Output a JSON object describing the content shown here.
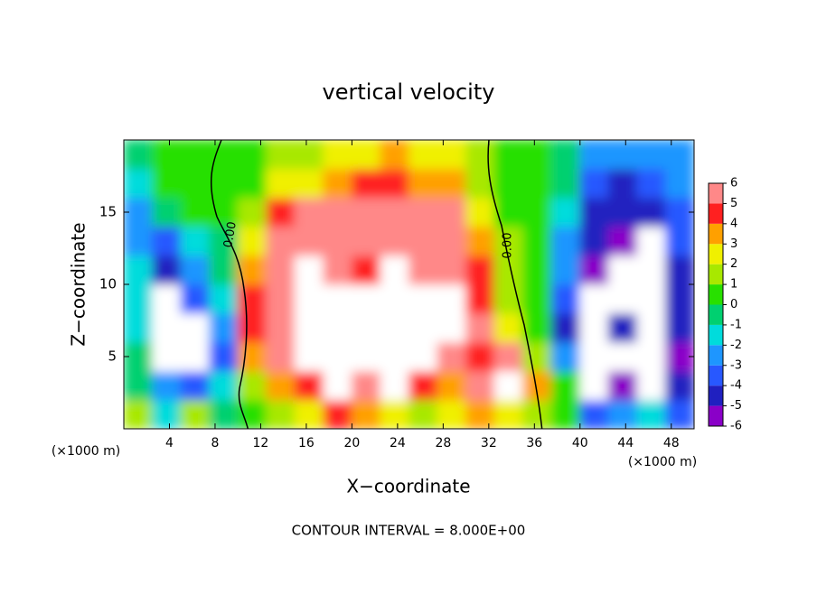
{
  "chart_data": {
    "type": "contour",
    "title": "vertical velocity",
    "x_label": "X−coordinate",
    "y_label": "Z−coordinate",
    "unit_label": "(×1000 m)",
    "footer": "CONTOUR INTERVAL = 8.000E+00",
    "contour_labels": [
      "0.00",
      "0.00"
    ],
    "xlim": [
      0,
      50
    ],
    "ylim": [
      0,
      20
    ],
    "xticks": [
      4,
      8,
      12,
      16,
      20,
      24,
      28,
      32,
      36,
      40,
      44,
      48
    ],
    "yticks": [
      5,
      10,
      15
    ],
    "x": [
      1.25,
      3.75,
      6.25,
      8.75,
      11.25,
      13.75,
      16.25,
      18.75,
      21.25,
      23.75,
      26.25,
      28.75,
      31.25,
      33.75,
      36.25,
      38.75,
      41.25,
      43.75,
      46.25,
      48.75
    ],
    "y": [
      1,
      3,
      5,
      7,
      9,
      11,
      13,
      15,
      17,
      19
    ],
    "z": [
      [
        1,
        -2,
        1,
        -1,
        0,
        1,
        2,
        4,
        3,
        2,
        1,
        2,
        3,
        2,
        1,
        0,
        -4,
        -3,
        -2,
        -4
      ],
      [
        -1,
        -3,
        -4,
        -2,
        1,
        3,
        4,
        8,
        5,
        7,
        4,
        3,
        5,
        8,
        3,
        0,
        -8,
        -6,
        -8,
        -5
      ],
      [
        -1,
        -8,
        -8,
        -4,
        3,
        5,
        7,
        8,
        8,
        8,
        7,
        6,
        4,
        5,
        1,
        -3,
        -8,
        -8,
        -8,
        -6
      ],
      [
        -2,
        -8,
        -8,
        -3,
        4,
        6,
        8,
        8,
        8,
        8,
        8,
        8,
        5,
        2,
        0,
        -5,
        -8,
        -5,
        -8,
        -5
      ],
      [
        -2,
        -8,
        -4,
        -2,
        4,
        6,
        8,
        8,
        7,
        8,
        8,
        7,
        4,
        1,
        0,
        -4,
        -8,
        -8,
        -8,
        -5
      ],
      [
        -2,
        -5,
        -3,
        -1,
        3,
        5,
        8,
        6,
        4,
        8,
        6,
        5,
        4,
        1,
        0,
        -3,
        -6,
        -8,
        -8,
        -5
      ],
      [
        -3,
        -4,
        -2,
        -1,
        2,
        5,
        5,
        6,
        5,
        6,
        5,
        5,
        3,
        1,
        0,
        -3,
        -5,
        -6,
        -8,
        -4
      ],
      [
        -3,
        -1,
        0,
        0,
        1,
        4,
        5,
        5,
        5,
        5,
        5,
        5,
        2,
        0,
        0,
        -2,
        -5,
        -5,
        -5,
        -4
      ],
      [
        -2,
        0,
        0,
        0,
        0,
        2,
        2,
        3,
        4,
        4,
        3,
        3,
        1,
        0,
        0,
        -1,
        -4,
        -5,
        -4,
        -3
      ],
      [
        -1,
        0,
        0,
        0,
        0,
        1,
        1,
        2,
        2,
        3,
        2,
        2,
        1,
        0,
        0,
        -1,
        -3,
        -3,
        -3,
        -3
      ]
    ],
    "clim": [
      -6,
      6
    ],
    "colorbar_ticks": [
      -6,
      -5,
      -4,
      -3,
      -2,
      -1,
      0,
      1,
      2,
      3,
      4,
      5,
      6
    ],
    "colors": [
      "#8a00c8",
      "#2020c0",
      "#2858ff",
      "#1e96ff",
      "#00dcdc",
      "#00d070",
      "#28e000",
      "#a8e800",
      "#f0f000",
      "#ffa000",
      "#ff2020",
      "#ff8888"
    ],
    "out_of_range_color": "#ffffff"
  }
}
